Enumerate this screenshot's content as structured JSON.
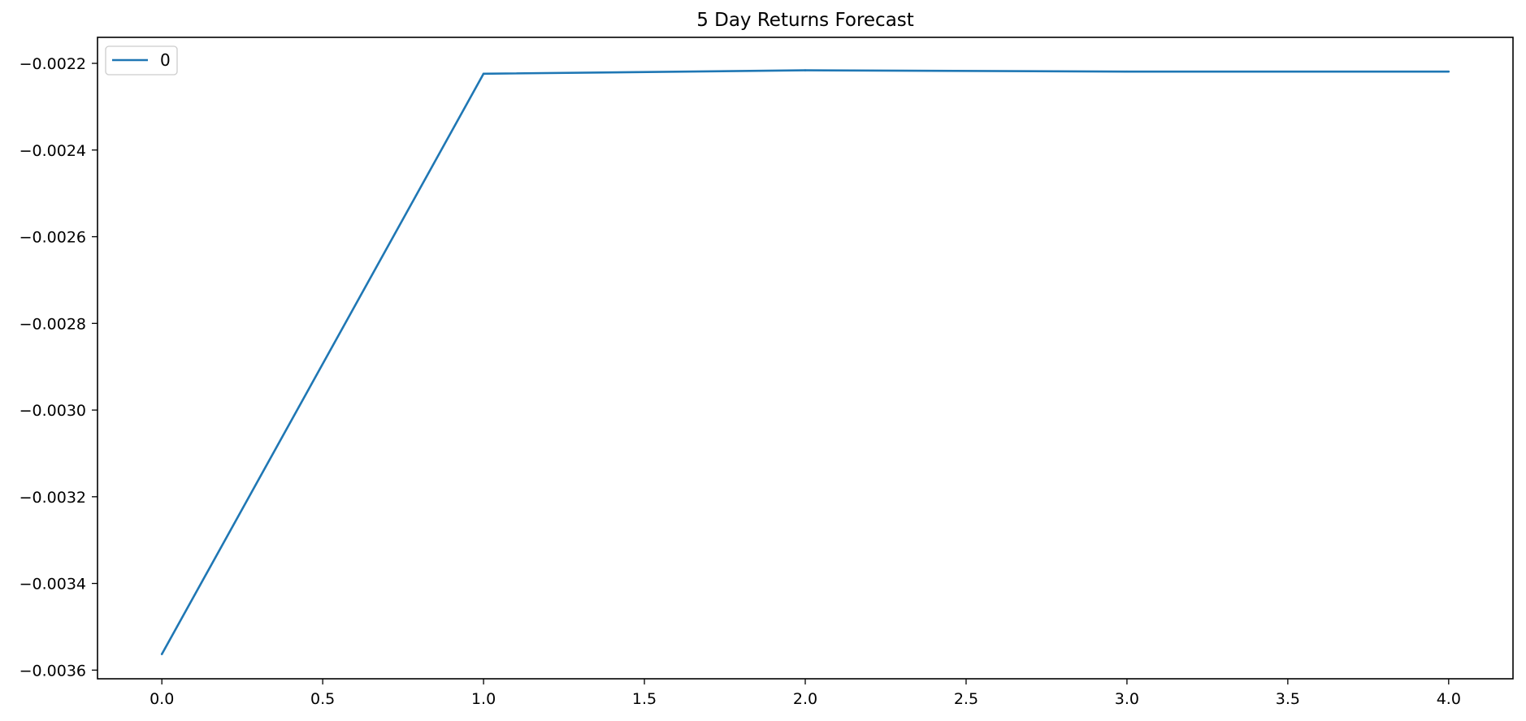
{
  "chart_data": {
    "type": "line",
    "title": "5 Day Returns Forecast",
    "xlabel": "",
    "ylabel": "",
    "x": [
      0,
      1,
      2,
      3,
      4
    ],
    "series": [
      {
        "name": "0",
        "values": [
          -0.003563,
          -0.002224,
          -0.002216,
          -0.002219,
          -0.002219
        ],
        "color": "#1f77b4"
      }
    ],
    "xlim": [
      -0.2,
      4.2
    ],
    "ylim": [
      -0.00362,
      -0.00214
    ],
    "xticks": [
      0.0,
      0.5,
      1.0,
      1.5,
      2.0,
      2.5,
      3.0,
      3.5,
      4.0
    ],
    "xtick_labels": [
      "0.0",
      "0.5",
      "1.0",
      "1.5",
      "2.0",
      "2.5",
      "3.0",
      "3.5",
      "4.0"
    ],
    "yticks": [
      -0.0022,
      -0.0024,
      -0.0026,
      -0.0028,
      -0.003,
      -0.0032,
      -0.0034,
      -0.0036
    ],
    "ytick_labels": [
      "−0.0022",
      "−0.0024",
      "−0.0026",
      "−0.0028",
      "−0.0030",
      "−0.0032",
      "−0.0034",
      "−0.0036"
    ],
    "grid": false,
    "legend_placement": "upper-left"
  }
}
